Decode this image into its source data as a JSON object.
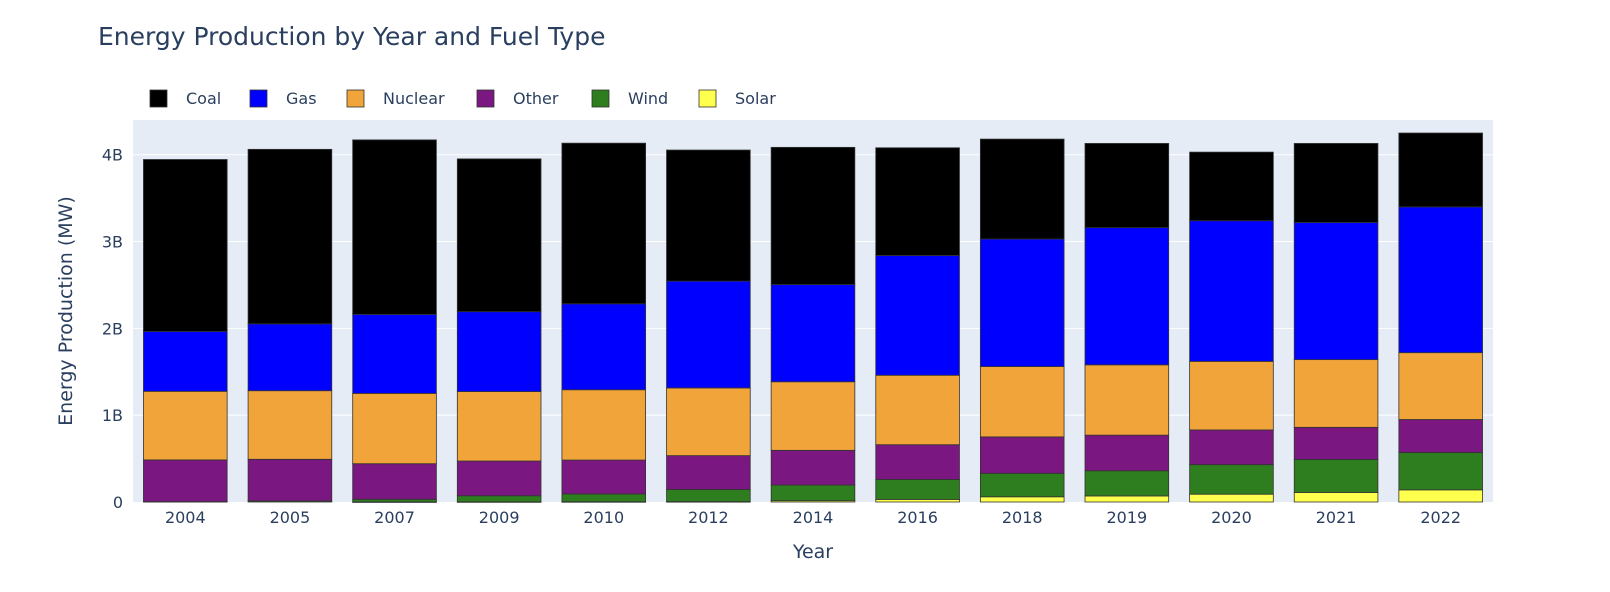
{
  "chart_data": {
    "type": "bar",
    "stacked": true,
    "title": "Energy Production by Year and Fuel Type",
    "xlabel": "Year",
    "ylabel": "Energy Production (MW)",
    "ylim": [
      0,
      4400000000
    ],
    "yticks": [
      {
        "value": 0,
        "label": "0"
      },
      {
        "value": 1000000000,
        "label": "1B"
      },
      {
        "value": 2000000000,
        "label": "2B"
      },
      {
        "value": 3000000000,
        "label": "3B"
      },
      {
        "value": 4000000000,
        "label": "4B"
      }
    ],
    "grid": true,
    "legend_position": "top-left",
    "categories": [
      "2004",
      "2005",
      "2007",
      "2009",
      "2010",
      "2012",
      "2014",
      "2016",
      "2018",
      "2019",
      "2020",
      "2021",
      "2022"
    ],
    "series": [
      {
        "name": "Solar",
        "color": "#ffff4d",
        "values": [
          0,
          0,
          1000000,
          2000000,
          3000000,
          4000000,
          15000000,
          30000000,
          60000000,
          70000000,
          90000000,
          110000000,
          140000000
        ]
      },
      {
        "name": "Wind",
        "color": "#2e7d1e",
        "values": [
          5000000,
          12000000,
          30000000,
          70000000,
          90000000,
          140000000,
          180000000,
          230000000,
          270000000,
          290000000,
          340000000,
          380000000,
          430000000
        ]
      },
      {
        "name": "Other",
        "color": "#7a1780",
        "values": [
          480000000,
          480000000,
          410000000,
          400000000,
          390000000,
          390000000,
          400000000,
          400000000,
          420000000,
          410000000,
          400000000,
          370000000,
          380000000
        ]
      },
      {
        "name": "Nuclear",
        "color": "#f0a43a",
        "values": [
          790000000,
          790000000,
          810000000,
          800000000,
          810000000,
          780000000,
          790000000,
          800000000,
          810000000,
          810000000,
          790000000,
          780000000,
          770000000
        ]
      },
      {
        "name": "Gas",
        "color": "#0000ff",
        "values": [
          690000000,
          770000000,
          910000000,
          920000000,
          990000000,
          1230000000,
          1120000000,
          1380000000,
          1470000000,
          1580000000,
          1620000000,
          1580000000,
          1680000000
        ]
      },
      {
        "name": "Coal",
        "color": "#000000",
        "values": [
          1980000000,
          2010000000,
          2010000000,
          1760000000,
          1850000000,
          1510000000,
          1580000000,
          1240000000,
          1150000000,
          970000000,
          790000000,
          910000000,
          850000000
        ]
      }
    ],
    "legend_order": [
      "Coal",
      "Gas",
      "Nuclear",
      "Other",
      "Wind",
      "Solar"
    ]
  }
}
